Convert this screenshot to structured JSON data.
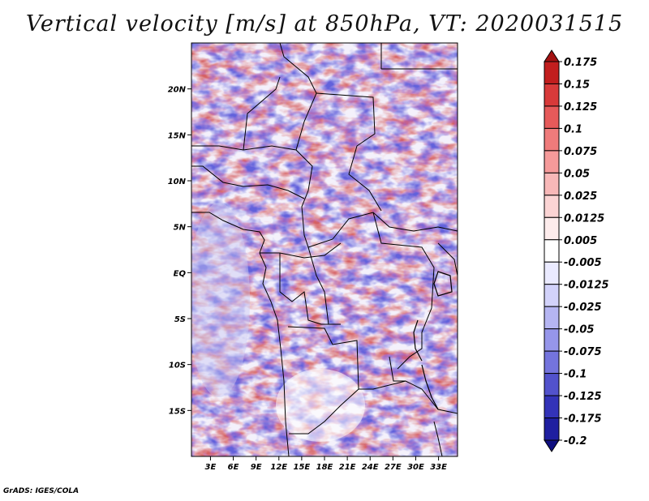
{
  "title": "Vertical velocity [m/s] at 850hPa, VT: 2020031515",
  "credit": "GrADS: IGES/COLA",
  "lat_labels": [
    "20N",
    "15N",
    "10N",
    "5N",
    "EQ",
    "5S",
    "10S",
    "15S"
  ],
  "lat_values": [
    20,
    15,
    10,
    5,
    0,
    -5,
    -10,
    -15
  ],
  "lon_labels": [
    "3E",
    "6E",
    "9E",
    "12E",
    "15E",
    "18E",
    "21E",
    "24E",
    "27E",
    "30E",
    "33E"
  ],
  "lon_values": [
    3,
    6,
    9,
    12,
    15,
    18,
    21,
    24,
    27,
    30,
    33
  ],
  "extent": {
    "lon_min": 0.5,
    "lon_max": 35.5,
    "lat_min": -20,
    "lat_max": 25
  },
  "colorbar": {
    "labels": [
      "0.175",
      "0.15",
      "0.125",
      "0.1",
      "0.075",
      "0.05",
      "0.025",
      "0.0125",
      "0.005",
      "-0.005",
      "-0.0125",
      "-0.025",
      "-0.05",
      "-0.075",
      "-0.1",
      "-0.125",
      "-0.175",
      "-0.2"
    ],
    "colors": [
      "#a31212",
      "#c21e1e",
      "#d83a3a",
      "#e65a5a",
      "#ef7b7b",
      "#f59a9a",
      "#f8b8b8",
      "#fbd4d4",
      "#fdecec",
      "#ffffff",
      "#eaeaff",
      "#d2d2fa",
      "#b5b5f2",
      "#9696ea",
      "#7474dd",
      "#5252cc",
      "#3333b8",
      "#1f1fa0",
      "#0f0f80"
    ]
  }
}
